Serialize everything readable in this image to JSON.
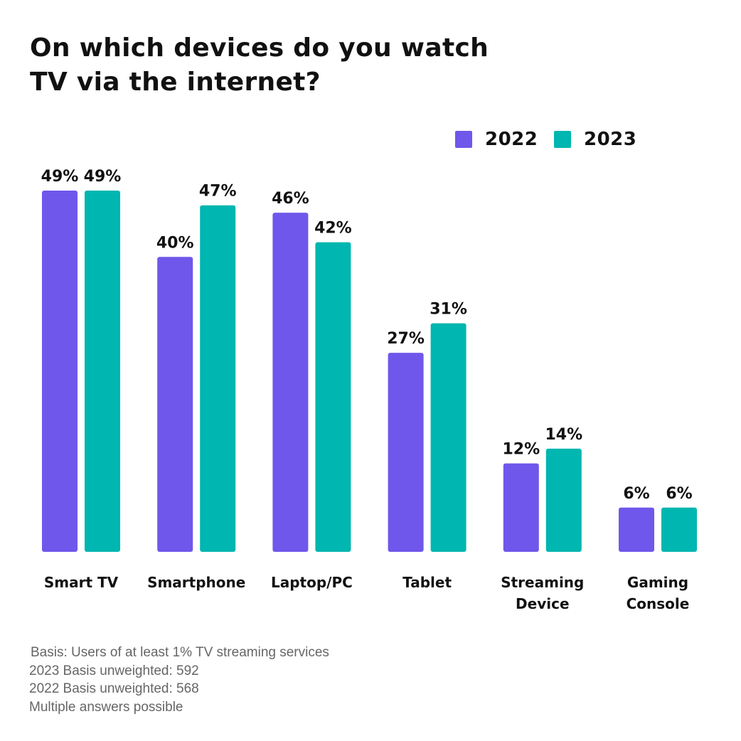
{
  "title_lines": [
    "On which devices do you watch",
    "TV via the internet?"
  ],
  "legend": [
    {
      "label": "2022",
      "color": "#6f57eb"
    },
    {
      "label": "2023",
      "color": "#00b6b0"
    }
  ],
  "chart_data": {
    "type": "bar",
    "title": "On which devices do you watch TV via the internet?",
    "categories": [
      [
        "Smart TV"
      ],
      [
        "Smartphone"
      ],
      [
        "Laptop/PC"
      ],
      [
        "Tablet"
      ],
      [
        "Streaming",
        "Device"
      ],
      [
        "Gaming",
        "Console"
      ]
    ],
    "series": [
      {
        "name": "2022",
        "color": "#6f57eb",
        "values": [
          49,
          40,
          46,
          27,
          12,
          6
        ],
        "labels": [
          "49%",
          "40%",
          "46%",
          "27%",
          "12%",
          "6%"
        ]
      },
      {
        "name": "2023",
        "color": "#00b6b0",
        "values": [
          49,
          47,
          42,
          31,
          14,
          6
        ],
        "labels": [
          "49%",
          "47%",
          "42%",
          "31%",
          "14%",
          "6%"
        ]
      }
    ],
    "ylim": [
      0,
      49
    ],
    "grid": false,
    "legend_position": "top-right",
    "data_labels": true
  },
  "notes": [
    "Basis: Users of at least 1% TV streaming services",
    "2023 Basis unweighted: 592",
    "2022 Basis unweighted: 568",
    "Multiple answers possible"
  ]
}
